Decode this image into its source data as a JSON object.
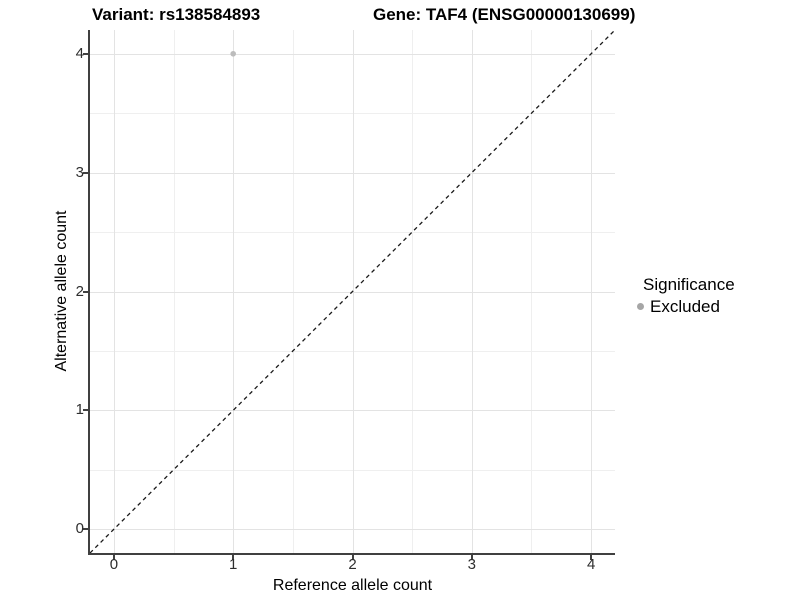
{
  "header": {
    "variant_title": "Variant: rs138584893",
    "gene_title": "Gene: TAF4 (ENSG00000130699)"
  },
  "chart_data": {
    "type": "scatter",
    "xlabel": "Reference allele count",
    "ylabel": "Alternative allele count",
    "xlim": [
      -0.2,
      4.2
    ],
    "ylim": [
      -0.2,
      4.2
    ],
    "xticks": [
      0,
      1,
      2,
      3,
      4
    ],
    "yticks": [
      0,
      1,
      2,
      3,
      4
    ],
    "xticks_minor": [
      0.5,
      1.5,
      2.5,
      3.5
    ],
    "yticks_minor": [
      0.5,
      1.5,
      2.5,
      3.5
    ],
    "grid": true,
    "points": [
      {
        "x": 1,
        "y": 4,
        "series": "Excluded"
      }
    ],
    "series": [
      {
        "name": "Excluded",
        "color": "#bcbcbc"
      }
    ],
    "reference_line": {
      "type": "identity",
      "slope": 1,
      "intercept": 0,
      "style": "dashed",
      "color": "#1a1a1a"
    },
    "legend": {
      "title": "Significance",
      "position": "right",
      "items": [
        {
          "label": "Excluded",
          "color": "#a6a6a6"
        }
      ]
    }
  },
  "colors": {
    "grid_major": "#e3e3e3",
    "grid_minor": "#efefef",
    "axis": "#404040",
    "tick_label": "#2e2e2e"
  }
}
